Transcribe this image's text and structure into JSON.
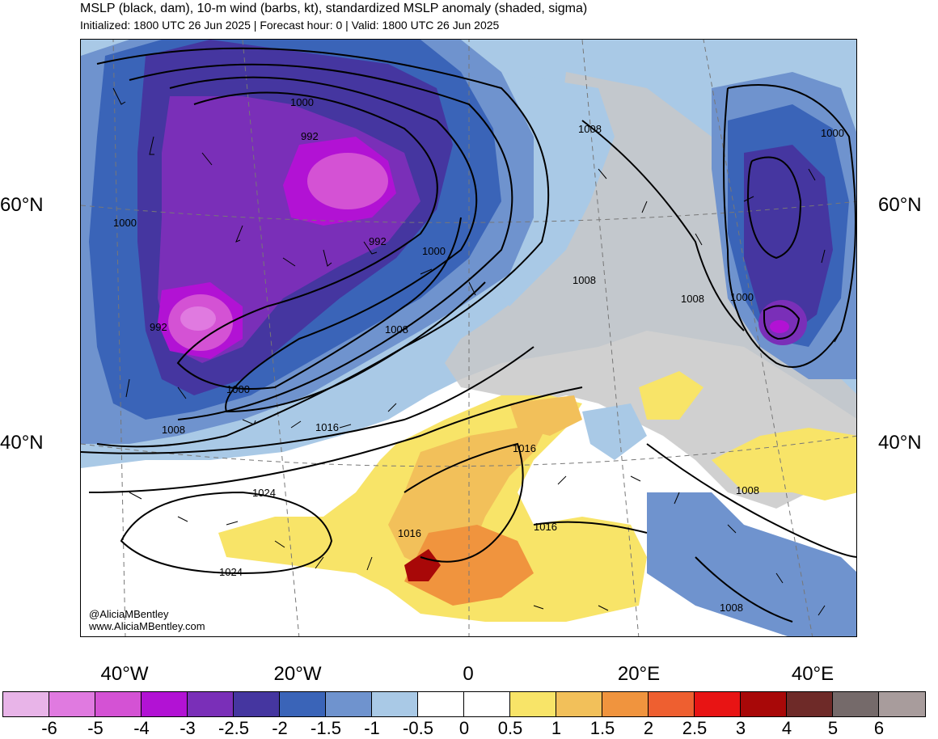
{
  "title": "MSLP (black, dam), 10-m wind (barbs, kt), standardized MSLP anomaly (shaded, sigma)",
  "subtitle": "Initialized: 1800 UTC 26 Jun 2025 | Forecast hour: 0 | Valid: 1800 UTC 26 Jun 2025",
  "lat_labels": {
    "left_60": "60°N",
    "left_40": "40°N",
    "right_60": "60°N",
    "right_40": "40°N"
  },
  "lon_labels": [
    "40°W",
    "20°W",
    "0",
    "20°E",
    "40°E"
  ],
  "credits": {
    "handle": "@AliciaMBentley",
    "site": "www.AliciaMBentley.com"
  },
  "contour_labels": {
    "c1000_iceland": "1000",
    "c992_north": "992",
    "c992_center": "992",
    "c992_west": "992",
    "c1000_west": "1000",
    "c1000_south": "1000",
    "c1000_east": "1000",
    "c1008_south": "1008",
    "c1008_uk": "1008",
    "c1016_atl": "1016",
    "c1024_north": "1024",
    "c1024_south": "1024",
    "c1016_iberia": "1016",
    "c1016_med": "1016",
    "c1016_africa": "1016",
    "c1008_scand": "1008",
    "c1008_baltic": "1008",
    "c1008_russia": "1008",
    "c1000_russia1": "1000",
    "c1000_russia2": "1000",
    "c1008_turkey": "1008",
    "c1008_mideast": "1008"
  },
  "colorbar": {
    "ticks": [
      "-6",
      "-5",
      "-4",
      "-3",
      "-2.5",
      "-2",
      "-1.5",
      "-1",
      "-0.5",
      "0",
      "0.5",
      "1",
      "1.5",
      "2",
      "2.5",
      "3",
      "4",
      "5",
      "6"
    ],
    "colors": [
      "#e8b4e8",
      "#e07ae0",
      "#d452d4",
      "#b212d4",
      "#7a2fb8",
      "#4536a0",
      "#3a64b8",
      "#6f93ce",
      "#a9c9e6",
      "#ffffff",
      "#ffffff",
      "#f8e468",
      "#f2c05a",
      "#f0943e",
      "#ee5f30",
      "#e81414",
      "#a80808",
      "#6e2a28",
      "#756a6a",
      "#a89c9c"
    ]
  },
  "legend_unit": "sigma"
}
